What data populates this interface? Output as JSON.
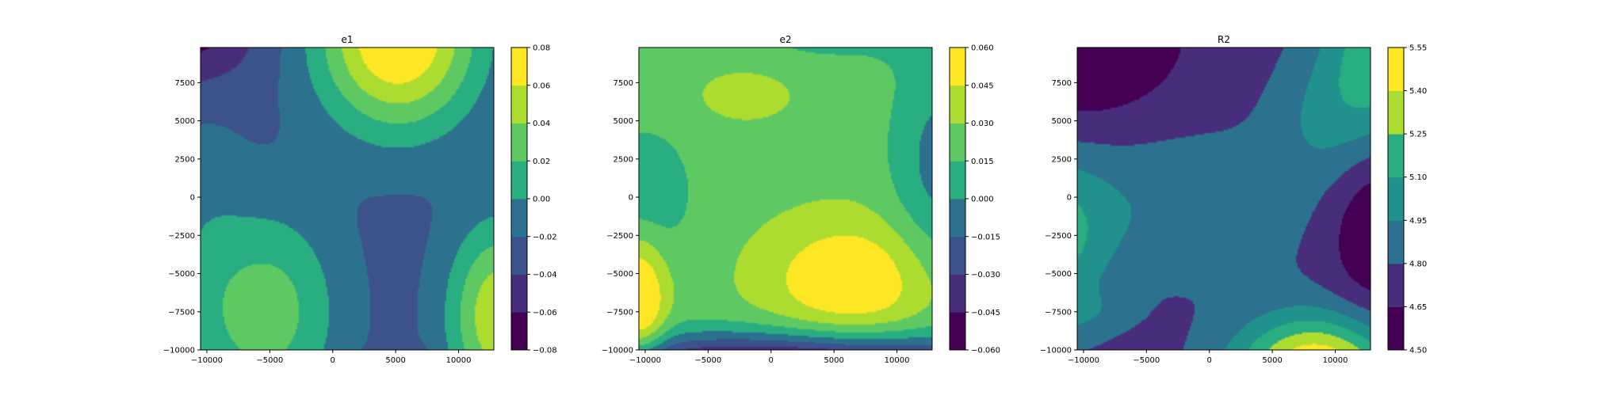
{
  "palette": {
    "viridis_9": [
      "#440154",
      "#472d7b",
      "#3b528b",
      "#2c728e",
      "#21918c",
      "#28ae80",
      "#5ec962",
      "#addc30",
      "#fde725"
    ],
    "frame": "#000000"
  },
  "chart_data": [
    {
      "type": "contourf",
      "title": "e1",
      "xlim": [
        -10500,
        12800
      ],
      "ylim": [
        -10000,
        9800
      ],
      "x_ticks": [
        -10000,
        -5000,
        0,
        5000,
        10000
      ],
      "x_tick_labels": [
        "−10000",
        "−5000",
        "0",
        "5000",
        "10000"
      ],
      "y_ticks": [
        -10000,
        -7500,
        -5000,
        -2500,
        0,
        2500,
        5000,
        7500
      ],
      "y_tick_labels": [
        "−10000",
        "−7500",
        "−5000",
        "−2500",
        "0",
        "2500",
        "5000",
        "7500"
      ],
      "levels": [
        -0.08,
        -0.06,
        -0.04,
        -0.02,
        0.0,
        0.02,
        0.04,
        0.06,
        0.08
      ],
      "colorbar_tick_labels": [
        "−0.08",
        "−0.06",
        "−0.04",
        "−0.02",
        "0.00",
        "0.02",
        "0.04",
        "0.06",
        "0.08"
      ],
      "field": {
        "base": -0.027,
        "bumps": [
          {
            "x": 5200,
            "y": 10500,
            "sx": 4500,
            "sy": 4300,
            "amp": 0.112
          },
          {
            "x": -5000,
            "y": -7500,
            "sx": 3900,
            "sy": 4800,
            "amp": 0.056
          },
          {
            "x": 13300,
            "y": -7800,
            "sx": 2900,
            "sy": 4300,
            "amp": 0.085
          },
          {
            "x": -12000,
            "y": 11500,
            "sx": 4000,
            "sy": 3000,
            "amp": -0.052
          },
          {
            "x": -10500,
            "y": -4000,
            "sx": 2500,
            "sy": 9000,
            "amp": 0.016
          },
          {
            "x": 5500,
            "y": -10500,
            "sx": 1800,
            "sy": 600,
            "amp": -0.01
          }
        ]
      }
    },
    {
      "type": "contourf",
      "title": "e2",
      "xlim": [
        -10500,
        12800
      ],
      "ylim": [
        -10000,
        9800
      ],
      "x_ticks": [
        -10000,
        -5000,
        0,
        5000,
        10000
      ],
      "x_tick_labels": [
        "−10000",
        "−5000",
        "0",
        "5000",
        "10000"
      ],
      "y_ticks": [
        -10000,
        -7500,
        -5000,
        -2500,
        0,
        2500,
        5000,
        7500
      ],
      "y_tick_labels": [
        "−10000",
        "−7500",
        "−5000",
        "−2500",
        "0",
        "2500",
        "5000",
        "7500"
      ],
      "levels": [
        -0.06,
        -0.045,
        -0.03,
        -0.015,
        0.0,
        0.015,
        0.03,
        0.045,
        0.06
      ],
      "colorbar_tick_labels": [
        "−0.060",
        "−0.045",
        "−0.030",
        "−0.015",
        "0.000",
        "0.015",
        "0.030",
        "0.045",
        "0.060"
      ],
      "field": {
        "base": 0.024,
        "bumps": [
          {
            "x": 6500,
            "y": -5500,
            "sx": 5000,
            "sy": 2900,
            "amp": 0.037
          },
          {
            "x": -2000,
            "y": 6700,
            "sx": 2400,
            "sy": 1100,
            "amp": 0.018
          },
          {
            "x": -10500,
            "y": -7000,
            "sx": 1500,
            "sy": 3200,
            "amp": 0.045
          },
          {
            "x": 13500,
            "y": 2000,
            "sx": 2800,
            "sy": 5500,
            "amp": -0.03
          },
          {
            "x": -10000,
            "y": 200,
            "sx": 2600,
            "sy": 3000,
            "amp": -0.022
          },
          {
            "x": 1500,
            "y": -11500,
            "sx": 14000,
            "sy": 1700,
            "amp": -0.1
          },
          {
            "x": 5000,
            "y": 10500,
            "sx": 6000,
            "sy": 1500,
            "amp": -0.012
          }
        ]
      }
    },
    {
      "type": "contourf",
      "title": "R2",
      "xlim": [
        -10500,
        12800
      ],
      "ylim": [
        -10000,
        9800
      ],
      "x_ticks": [
        -10000,
        -5000,
        0,
        5000,
        10000
      ],
      "x_tick_labels": [
        "−10000",
        "−5000",
        "0",
        "5000",
        "10000"
      ],
      "y_ticks": [
        -10000,
        -7500,
        -5000,
        -2500,
        0,
        2500,
        5000,
        7500
      ],
      "y_tick_labels": [
        "−10000",
        "−7500",
        "−5000",
        "−2500",
        "0",
        "2500",
        "5000",
        "7500"
      ],
      "levels": [
        4.5,
        4.65,
        4.8,
        4.95,
        5.1,
        5.25,
        5.4,
        5.55
      ],
      "colorbar_tick_labels": [
        "4.50",
        "4.65",
        "4.80",
        "4.95",
        "5.10",
        "5.25",
        "5.40",
        "5.55"
      ],
      "field": {
        "base": 4.75,
        "bumps": [
          {
            "x": 8500,
            "y": -11500,
            "sx": 4500,
            "sy": 2600,
            "amp": 0.85
          },
          {
            "x": 13500,
            "y": 9500,
            "sx": 3200,
            "sy": 4300,
            "amp": 0.45
          },
          {
            "x": -12000,
            "y": -3000,
            "sx": 2800,
            "sy": 3800,
            "amp": 0.32
          },
          {
            "x": -11000,
            "y": 10500,
            "sx": 6000,
            "sy": 4200,
            "amp": -0.3
          },
          {
            "x": 13500,
            "y": -2000,
            "sx": 2800,
            "sy": 4000,
            "amp": -0.3
          },
          {
            "x": -4000,
            "y": -500,
            "sx": 9000,
            "sy": 3500,
            "amp": 0.18
          },
          {
            "x": 9000,
            "y": 5000,
            "sx": 3000,
            "sy": 3000,
            "amp": 0.17
          },
          {
            "x": -10500,
            "y": -7500,
            "sx": 3000,
            "sy": 1000,
            "amp": 0.12
          }
        ]
      }
    }
  ]
}
